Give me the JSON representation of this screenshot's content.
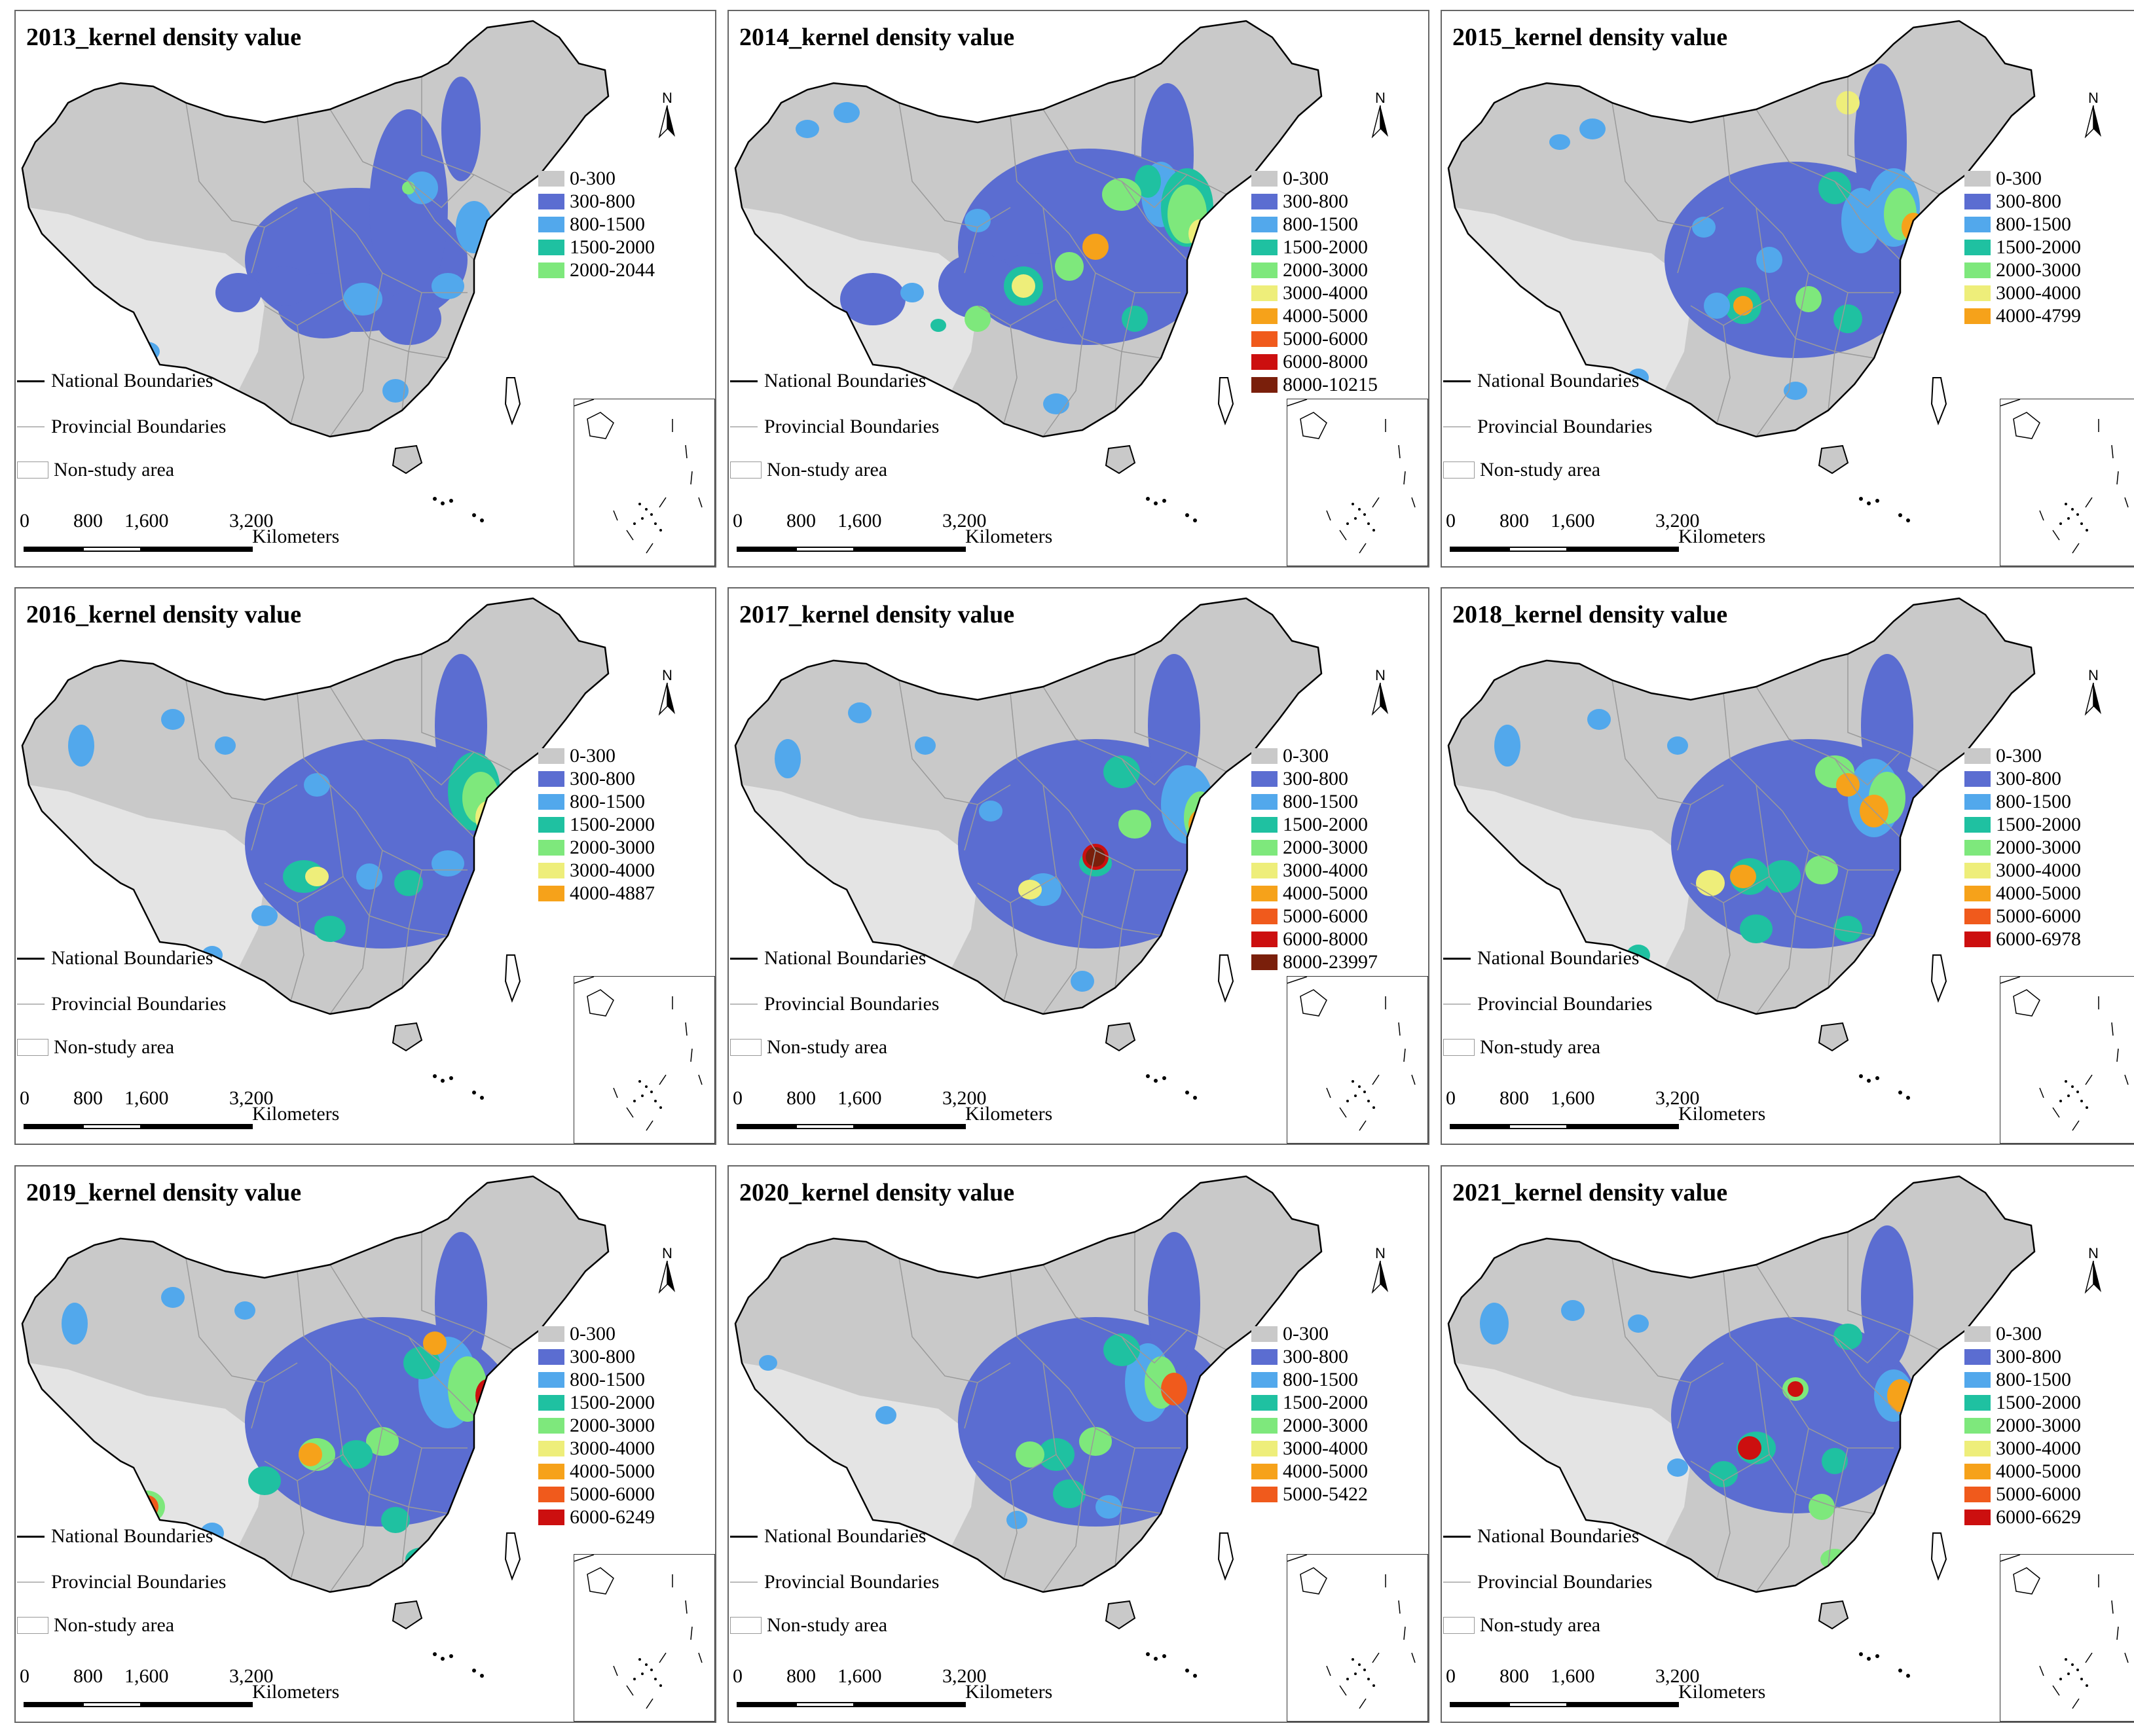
{
  "panels": [
    {
      "title": "2013_kernel density value",
      "legend": [
        {
          "label": "0-300",
          "color": "#c9c9c9"
        },
        {
          "label": "300-800",
          "color": "#5b6dd1"
        },
        {
          "label": "800-1500",
          "color": "#52a8ec"
        },
        {
          "label": "1500-2000",
          "color": "#1fc1a1"
        },
        {
          "label": "2000-2044",
          "color": "#7ee87c"
        }
      ]
    },
    {
      "title": "2014_kernel density value",
      "legend": [
        {
          "label": "0-300",
          "color": "#c9c9c9"
        },
        {
          "label": "300-800",
          "color": "#5b6dd1"
        },
        {
          "label": "800-1500",
          "color": "#52a8ec"
        },
        {
          "label": "1500-2000",
          "color": "#1fc1a1"
        },
        {
          "label": "2000-3000",
          "color": "#7ee87c"
        },
        {
          "label": "3000-4000",
          "color": "#eeee7a"
        },
        {
          "label": "4000-5000",
          "color": "#f6a21a"
        },
        {
          "label": "5000-6000",
          "color": "#f05a1c"
        },
        {
          "label": "6000-8000",
          "color": "#cc0f0f"
        },
        {
          "label": "8000-10215",
          "color": "#7a1f0b"
        }
      ]
    },
    {
      "title": "2015_kernel density value",
      "legend": [
        {
          "label": "0-300",
          "color": "#c9c9c9"
        },
        {
          "label": "300-800",
          "color": "#5b6dd1"
        },
        {
          "label": "800-1500",
          "color": "#52a8ec"
        },
        {
          "label": "1500-2000",
          "color": "#1fc1a1"
        },
        {
          "label": "2000-3000",
          "color": "#7ee87c"
        },
        {
          "label": "3000-4000",
          "color": "#eeee7a"
        },
        {
          "label": "4000-4799",
          "color": "#f6a21a"
        }
      ]
    },
    {
      "title": "2016_kernel density value",
      "legend": [
        {
          "label": "0-300",
          "color": "#c9c9c9"
        },
        {
          "label": "300-800",
          "color": "#5b6dd1"
        },
        {
          "label": "800-1500",
          "color": "#52a8ec"
        },
        {
          "label": "1500-2000",
          "color": "#1fc1a1"
        },
        {
          "label": "2000-3000",
          "color": "#7ee87c"
        },
        {
          "label": "3000-4000",
          "color": "#eeee7a"
        },
        {
          "label": "4000-4887",
          "color": "#f6a21a"
        }
      ]
    },
    {
      "title": "2017_kernel density value",
      "legend": [
        {
          "label": "0-300",
          "color": "#c9c9c9"
        },
        {
          "label": "300-800",
          "color": "#5b6dd1"
        },
        {
          "label": "800-1500",
          "color": "#52a8ec"
        },
        {
          "label": "1500-2000",
          "color": "#1fc1a1"
        },
        {
          "label": "2000-3000",
          "color": "#7ee87c"
        },
        {
          "label": "3000-4000",
          "color": "#eeee7a"
        },
        {
          "label": "4000-5000",
          "color": "#f6a21a"
        },
        {
          "label": "5000-6000",
          "color": "#f05a1c"
        },
        {
          "label": "6000-8000",
          "color": "#cc0f0f"
        },
        {
          "label": "8000-23997",
          "color": "#7a1f0b"
        }
      ]
    },
    {
      "title": "2018_kernel density value",
      "legend": [
        {
          "label": "0-300",
          "color": "#c9c9c9"
        },
        {
          "label": "300-800",
          "color": "#5b6dd1"
        },
        {
          "label": "800-1500",
          "color": "#52a8ec"
        },
        {
          "label": "1500-2000",
          "color": "#1fc1a1"
        },
        {
          "label": "2000-3000",
          "color": "#7ee87c"
        },
        {
          "label": "3000-4000",
          "color": "#eeee7a"
        },
        {
          "label": "4000-5000",
          "color": "#f6a21a"
        },
        {
          "label": "5000-6000",
          "color": "#f05a1c"
        },
        {
          "label": "6000-6978",
          "color": "#cc0f0f"
        }
      ]
    },
    {
      "title": "2019_kernel density value",
      "legend": [
        {
          "label": "0-300",
          "color": "#c9c9c9"
        },
        {
          "label": "300-800",
          "color": "#5b6dd1"
        },
        {
          "label": "800-1500",
          "color": "#52a8ec"
        },
        {
          "label": "1500-2000",
          "color": "#1fc1a1"
        },
        {
          "label": "2000-3000",
          "color": "#7ee87c"
        },
        {
          "label": "3000-4000",
          "color": "#eeee7a"
        },
        {
          "label": "4000-5000",
          "color": "#f6a21a"
        },
        {
          "label": "5000-6000",
          "color": "#f05a1c"
        },
        {
          "label": "6000-6249",
          "color": "#cc0f0f"
        }
      ]
    },
    {
      "title": "2020_kernel density value",
      "legend": [
        {
          "label": "0-300",
          "color": "#c9c9c9"
        },
        {
          "label": "300-800",
          "color": "#5b6dd1"
        },
        {
          "label": "800-1500",
          "color": "#52a8ec"
        },
        {
          "label": "1500-2000",
          "color": "#1fc1a1"
        },
        {
          "label": "2000-3000",
          "color": "#7ee87c"
        },
        {
          "label": "3000-4000",
          "color": "#eeee7a"
        },
        {
          "label": "4000-5000",
          "color": "#f6a21a"
        },
        {
          "label": "5000-5422",
          "color": "#f05a1c"
        }
      ]
    },
    {
      "title": "2021_kernel density value",
      "legend": [
        {
          "label": "0-300",
          "color": "#c9c9c9"
        },
        {
          "label": "300-800",
          "color": "#5b6dd1"
        },
        {
          "label": "800-1500",
          "color": "#52a8ec"
        },
        {
          "label": "1500-2000",
          "color": "#1fc1a1"
        },
        {
          "label": "2000-3000",
          "color": "#7ee87c"
        },
        {
          "label": "3000-4000",
          "color": "#eeee7a"
        },
        {
          "label": "4000-5000",
          "color": "#f6a21a"
        },
        {
          "label": "5000-6000",
          "color": "#f05a1c"
        },
        {
          "label": "6000-6629",
          "color": "#cc0f0f"
        }
      ]
    }
  ],
  "common": {
    "north_label": "N",
    "national_boundaries": "National Boundaries",
    "provincial_boundaries": "Provincial Boundaries",
    "non_study_area": "Non-study area",
    "scale_ticks": [
      "0",
      "800",
      "1,600",
      "3,200"
    ],
    "scale_unit": "Kilometers"
  },
  "colors": {
    "study_area": "#c9c9c9",
    "non_study": "#e4e4e4",
    "national_line": "#000000",
    "provincial_line": "#9a9a9a",
    "panel_border": "#666666"
  }
}
